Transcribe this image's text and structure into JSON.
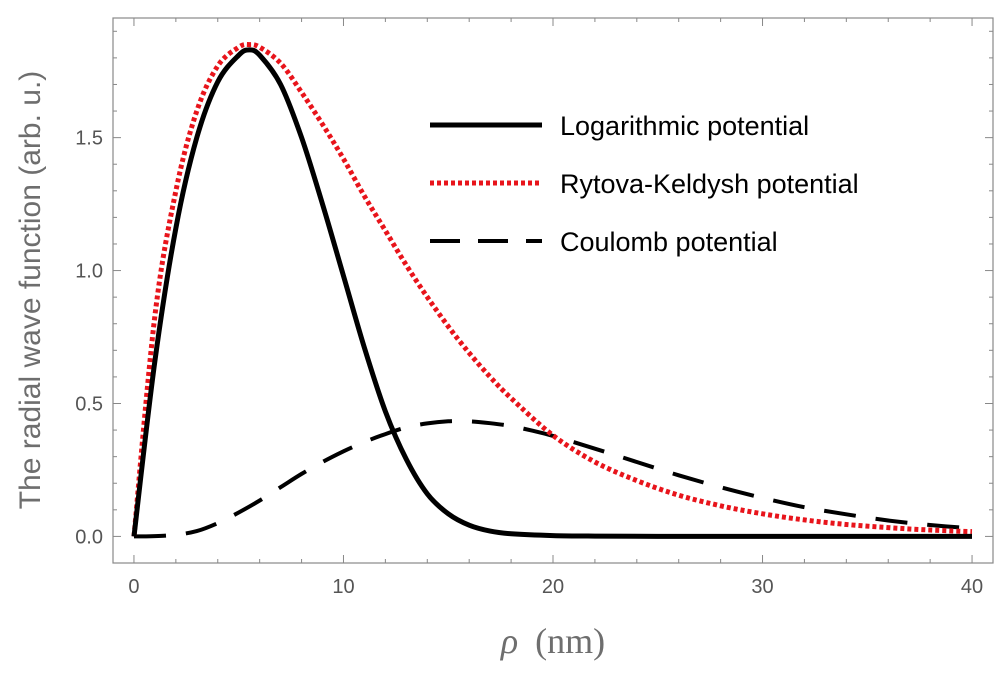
{
  "chart_data": {
    "type": "line",
    "title": "",
    "xlabel": "ρ (nm)",
    "xlabel_symbol": "ρ",
    "xlabel_unit": "(nm)",
    "ylabel": "The radial wave function (arb. u.)",
    "xlim": [
      -1,
      41
    ],
    "ylim": [
      -0.1,
      1.95
    ],
    "x_ticks": [
      0,
      10,
      20,
      30,
      40
    ],
    "x_tick_labels": [
      "0",
      "10",
      "20",
      "30",
      "40"
    ],
    "y_ticks": [
      0.0,
      0.5,
      1.0,
      1.5
    ],
    "y_tick_labels": [
      "0.0",
      "0.5",
      "1.0",
      "1.5"
    ],
    "grid": false,
    "legend_position": "top-right",
    "series": [
      {
        "name": "Logarithmic potential",
        "style": "solid",
        "color": "#000000",
        "x": [
          0,
          1,
          2,
          3,
          4,
          5,
          5.5,
          6,
          7,
          8,
          9,
          10,
          11,
          12,
          13,
          14,
          15,
          16,
          17,
          18,
          20,
          22,
          25,
          30,
          35,
          40
        ],
        "y": [
          0,
          0.66,
          1.16,
          1.5,
          1.71,
          1.81,
          1.83,
          1.81,
          1.7,
          1.5,
          1.25,
          0.98,
          0.71,
          0.47,
          0.29,
          0.16,
          0.085,
          0.042,
          0.02,
          0.01,
          0.003,
          0.001,
          0,
          0,
          0,
          0
        ]
      },
      {
        "name": "Rytova-Keldysh potential",
        "style": "dotted",
        "color": "#e8141b",
        "x": [
          0,
          1,
          2,
          3,
          4,
          5,
          5.5,
          6,
          7,
          8,
          9,
          10,
          11,
          12,
          13,
          14,
          15,
          16,
          17,
          18,
          20,
          22,
          24,
          26,
          28,
          30,
          32,
          34,
          36,
          38,
          40
        ],
        "y": [
          0,
          0.83,
          1.3,
          1.6,
          1.77,
          1.84,
          1.85,
          1.84,
          1.78,
          1.67,
          1.55,
          1.42,
          1.28,
          1.15,
          1.02,
          0.9,
          0.79,
          0.69,
          0.6,
          0.52,
          0.38,
          0.28,
          0.21,
          0.155,
          0.115,
          0.085,
          0.062,
          0.045,
          0.033,
          0.024,
          0.018
        ]
      },
      {
        "name": "Coulomb potential",
        "style": "dashed",
        "color": "#000000",
        "x": [
          0,
          1,
          2,
          3,
          4,
          5,
          6,
          7,
          8,
          9,
          10,
          11,
          12,
          13,
          14,
          15,
          16,
          17,
          18,
          19,
          20,
          22,
          24,
          26,
          28,
          30,
          32,
          34,
          36,
          38,
          40
        ],
        "y": [
          0,
          0.001,
          0.006,
          0.02,
          0.05,
          0.09,
          0.135,
          0.185,
          0.235,
          0.28,
          0.32,
          0.355,
          0.385,
          0.41,
          0.425,
          0.433,
          0.433,
          0.426,
          0.415,
          0.398,
          0.378,
          0.33,
          0.28,
          0.23,
          0.185,
          0.145,
          0.11,
          0.083,
          0.06,
          0.043,
          0.03
        ]
      }
    ]
  }
}
